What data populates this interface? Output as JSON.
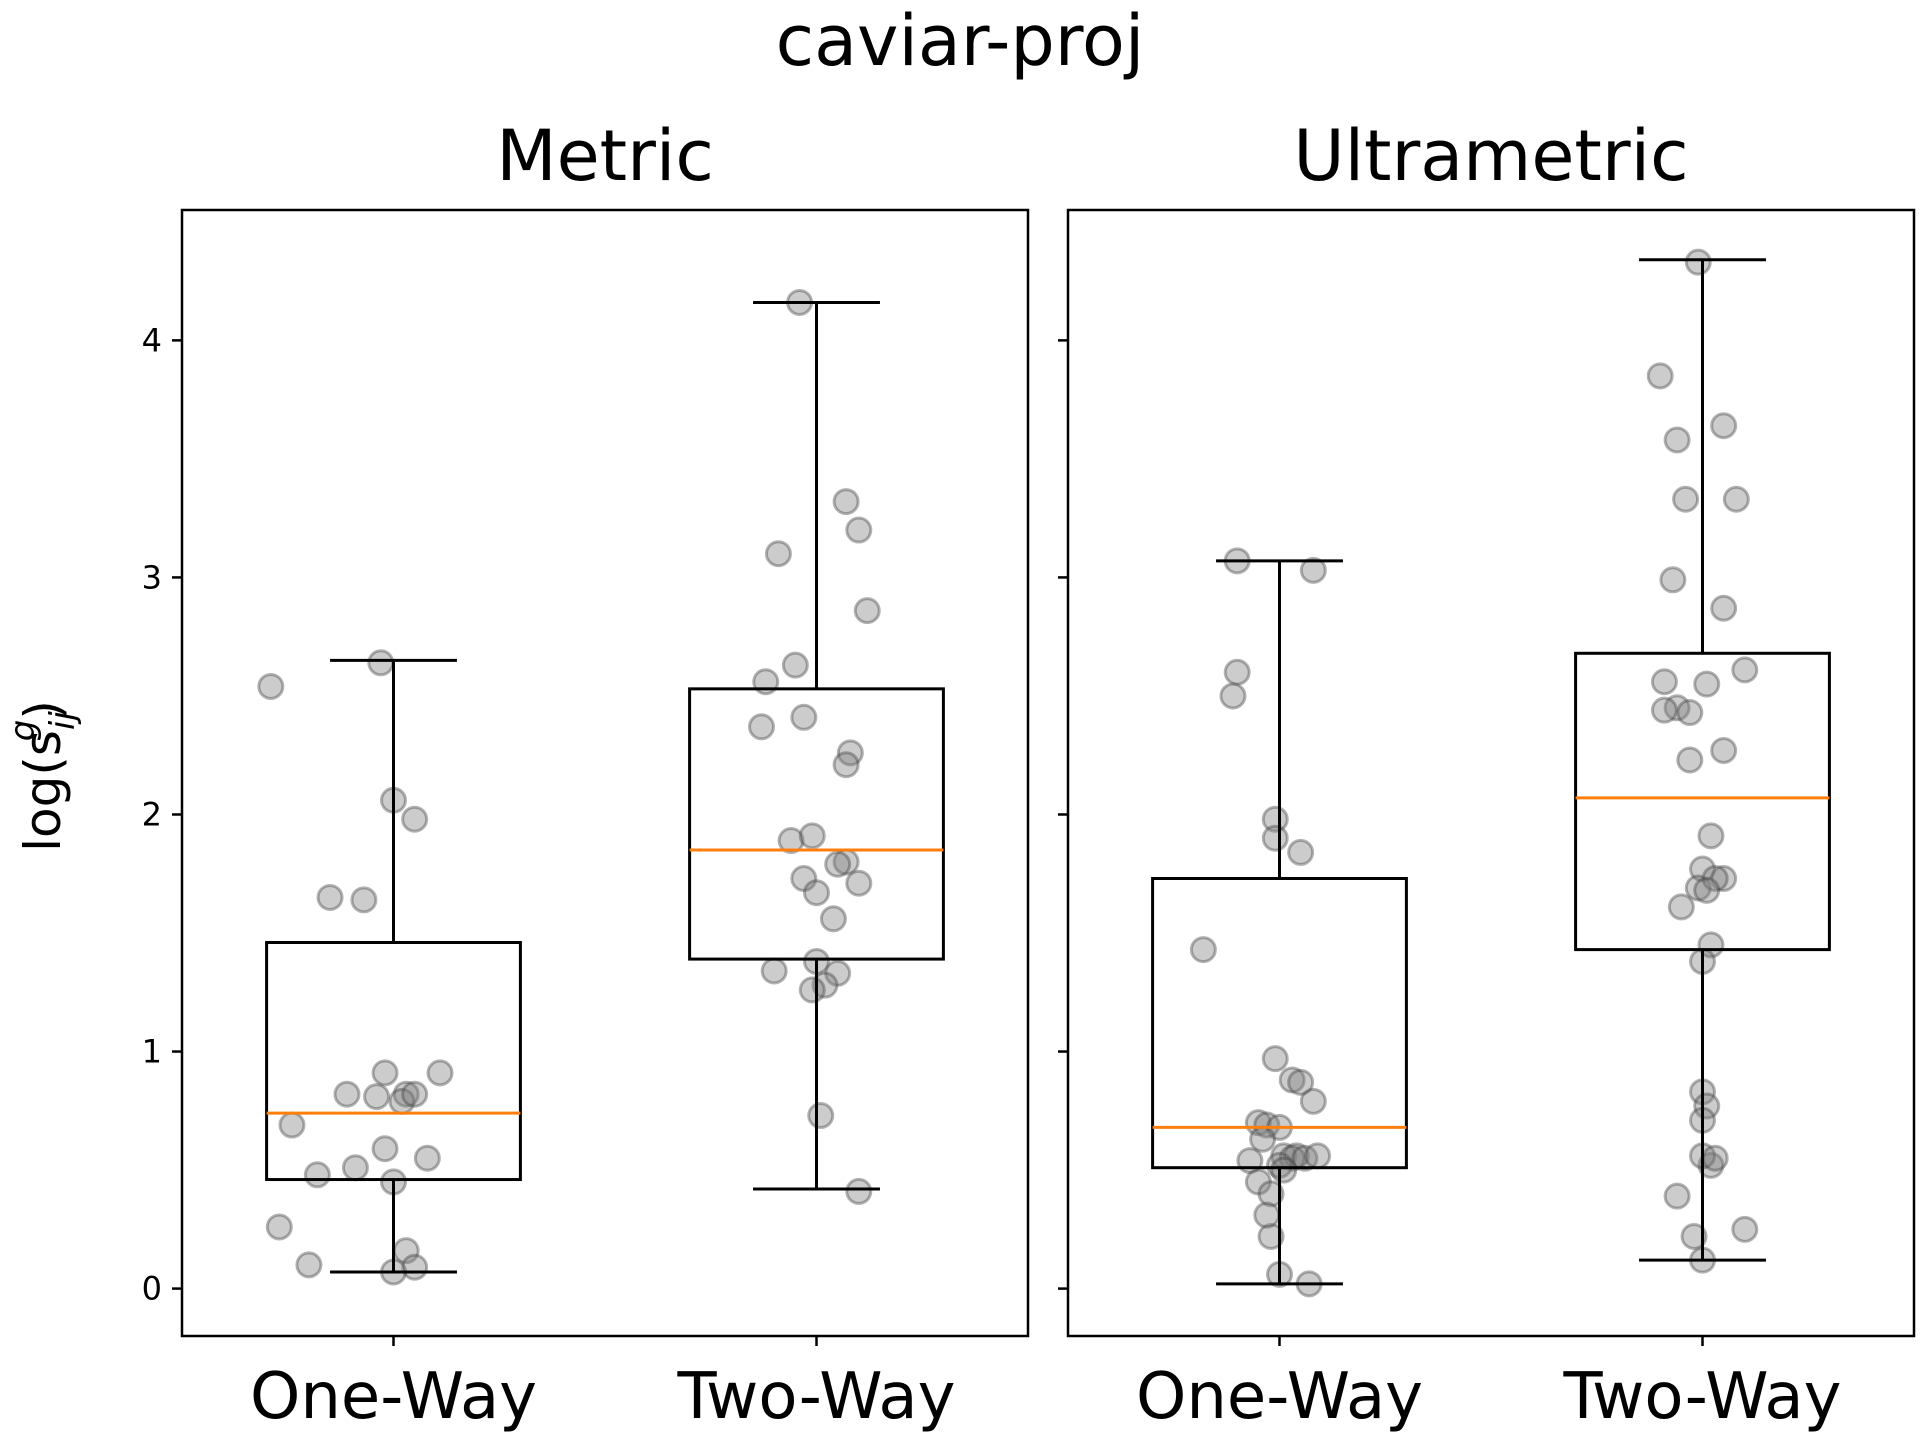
{
  "figure": {
    "suptitle": "caviar-proj",
    "ylabel_base": "log(s",
    "ylabel_sup": "g",
    "ylabel_sub": "ij",
    "ylabel_close": ")"
  },
  "colors": {
    "median": "#ff7f0e",
    "box": "#000000",
    "point_fill": "#808080",
    "point_stroke": "#404040"
  },
  "chart_data": [
    {
      "type": "box",
      "title": "Metric",
      "categories": [
        "One-Way",
        "Two-Way"
      ],
      "ylim": [
        -0.2,
        4.55
      ],
      "yticks": [
        0,
        1,
        2,
        3,
        4
      ],
      "grid": false,
      "boxes": [
        {
          "name": "One-Way",
          "whisker_low": 0.07,
          "q1": 0.46,
          "median": 0.74,
          "q3": 1.46,
          "whisker_high": 2.65
        },
        {
          "name": "Two-Way",
          "whisker_low": 0.42,
          "q1": 1.39,
          "median": 1.85,
          "q3": 2.53,
          "whisker_high": 4.16
        }
      ],
      "points": [
        {
          "category": "One-Way",
          "jitter": [
            -0.03,
            -0.29,
            0.0,
            0.05,
            -0.15,
            -0.07,
            0.11,
            -0.02,
            -0.11,
            -0.04,
            0.03,
            0.02,
            0.05,
            -0.02,
            0.08,
            -0.24,
            -0.18,
            -0.09,
            0.0,
            -0.27,
            0.03
          ],
          "y": [
            2.64,
            2.54,
            2.06,
            1.98,
            1.65,
            1.64,
            0.91,
            0.91,
            0.82,
            0.81,
            0.82,
            0.79,
            0.82,
            0.59,
            0.55,
            0.69,
            0.48,
            0.51,
            0.45,
            0.26,
            0.16
          ]
        },
        {
          "category": "One-Way",
          "jitter": [
            -0.2,
            0.05,
            0.0
          ],
          "y": [
            0.1,
            0.09,
            0.07
          ]
        },
        {
          "category": "Two-Way",
          "jitter": [
            -0.04,
            0.07,
            -0.09,
            0.1,
            0.12,
            -0.05,
            -0.12,
            -0.03,
            -0.13,
            0.08,
            0.07,
            -0.06,
            -0.01,
            0.07,
            0.05,
            0.1,
            -0.03,
            0.0,
            0.04,
            -0.1,
            0.0,
            0.05,
            0.02,
            -0.01,
            0.01,
            0.1
          ],
          "y": [
            4.16,
            3.32,
            3.1,
            3.2,
            2.86,
            2.63,
            2.56,
            2.41,
            2.37,
            2.26,
            2.21,
            1.89,
            1.91,
            1.8,
            1.79,
            1.71,
            1.73,
            1.67,
            1.56,
            1.34,
            1.38,
            1.33,
            1.28,
            1.26,
            0.73,
            0.41
          ]
        }
      ]
    },
    {
      "type": "box",
      "title": "Ultrametric",
      "categories": [
        "One-Way",
        "Two-Way"
      ],
      "ylim": [
        -0.2,
        4.55
      ],
      "yticks": [
        0,
        1,
        2,
        3,
        4
      ],
      "grid": false,
      "boxes": [
        {
          "name": "One-Way",
          "whisker_low": 0.02,
          "q1": 0.51,
          "median": 0.68,
          "q3": 1.73,
          "whisker_high": 3.07
        },
        {
          "name": "Two-Way",
          "whisker_low": 0.12,
          "q1": 1.43,
          "median": 2.07,
          "q3": 2.68,
          "whisker_high": 4.34
        }
      ],
      "points": [
        {
          "category": "One-Way",
          "jitter": [
            -0.1,
            0.08,
            -0.1,
            -0.11,
            -0.01,
            -0.01,
            0.05,
            -0.18,
            -0.01,
            0.03,
            0.05,
            0.08,
            -0.05,
            -0.03,
            0.0,
            -0.04,
            0.01,
            0.04,
            0.03,
            -0.07,
            -0.05,
            -0.02,
            0.0,
            0.06,
            0.01,
            0.09,
            -0.02,
            -0.03,
            0.0,
            0.07
          ],
          "y": [
            3.07,
            3.03,
            2.6,
            2.5,
            1.98,
            1.9,
            1.84,
            1.43,
            0.97,
            0.88,
            0.87,
            0.79,
            0.7,
            0.69,
            0.68,
            0.63,
            0.56,
            0.56,
            0.55,
            0.54,
            0.45,
            0.4,
            0.52,
            0.55,
            0.5,
            0.56,
            0.22,
            0.31,
            0.06,
            0.02
          ]
        },
        {
          "category": "Two-Way",
          "jitter": [
            -0.01,
            -0.1,
            0.05,
            -0.06,
            -0.04,
            0.08,
            0.05,
            -0.07,
            0.1,
            0.01,
            -0.09,
            -0.06,
            -0.09,
            -0.03,
            -0.03,
            0.05,
            0.02,
            0.0,
            -0.01,
            0.05,
            0.03,
            0.01,
            -0.05,
            0.02,
            0.0,
            0.0,
            0.01,
            0.0,
            -0.06,
            0.1,
            -0.02,
            0.0,
            0.02,
            0.0,
            0.03
          ],
          "y": [
            4.33,
            3.85,
            3.64,
            3.58,
            3.33,
            3.33,
            2.87,
            2.99,
            2.61,
            2.55,
            2.56,
            2.45,
            2.44,
            2.43,
            2.23,
            2.27,
            1.91,
            1.77,
            1.69,
            1.73,
            1.73,
            1.68,
            1.61,
            1.45,
            1.38,
            0.83,
            0.77,
            0.71,
            0.39,
            0.25,
            0.22,
            0.12,
            0.52,
            0.56,
            0.55
          ]
        }
      ]
    }
  ]
}
